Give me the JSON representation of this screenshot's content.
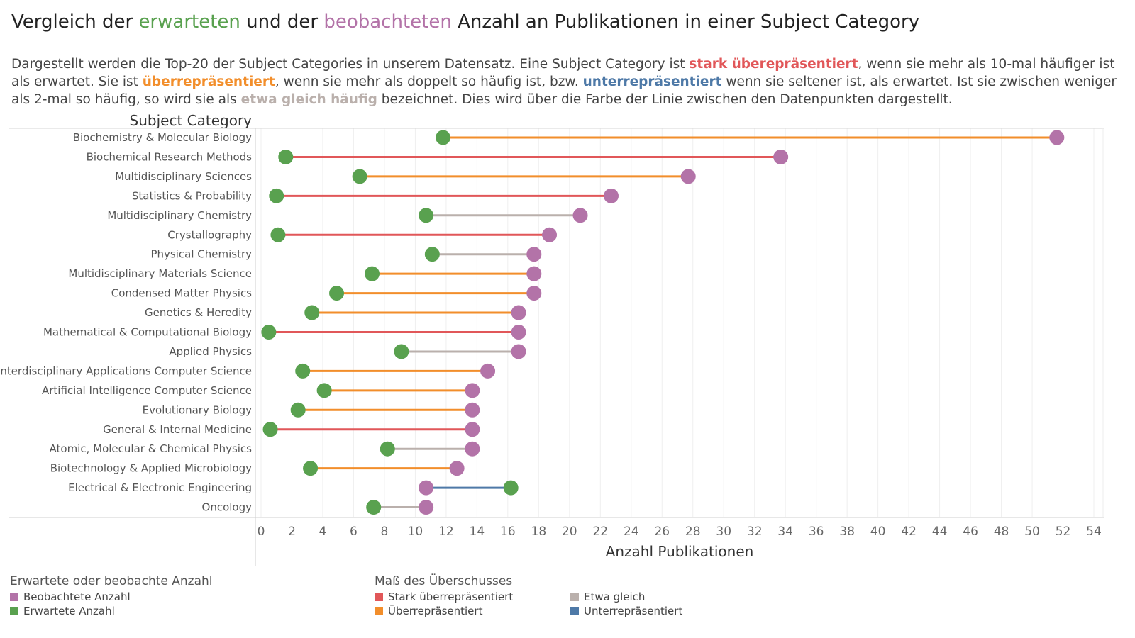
{
  "title": {
    "p1": "Vergleich der ",
    "erwartet": "erwarteten",
    "p2": " und der ",
    "beobachtet": "beobachteten",
    "p3": " Anzahl an Publikationen in einer Subject Category"
  },
  "description": {
    "s1": "Dargestellt werden die Top-20 der Subject Categories in unserem Datensatz. Eine Subject Category ist ",
    "strong_over": "stark überepräsentiert",
    "s2": ", wenn sie mehr als 10-mal häufiger ist als erwartet. Sie ist ",
    "over": "überrepräsentiert",
    "s3": ", wenn sie mehr als doppelt so häufig ist, bzw. ",
    "under": "unterrepräsentiert",
    "s4": " wenn sie seltener ist, als erwartet. Ist sie zwischen weniger als 2-mal so häufig, so wird sie als ",
    "equal": "etwa gleich häufig",
    "s5": " bezeichnet. Dies wird über die Farbe der Linie zwischen den Datenpunkten dargestellt."
  },
  "colors": {
    "observed": "#b373a8",
    "expected": "#59a14f",
    "strong_over": "#e15759",
    "over": "#f28e2b",
    "equal": "#bab0ac",
    "under": "#4e79a7"
  },
  "legend_points": {
    "title": "Erwartete oder beobachte Anzahl",
    "observed": "Beobachtete Anzahl",
    "expected": "Erwartete Anzahl"
  },
  "legend_lines": {
    "title": "Maß des Überschusses",
    "strong_over": "Stark überrepräsentiert",
    "over": "Überrepräsentiert",
    "equal": "Etwa gleich",
    "under": "Unterrepräsentiert"
  },
  "chart_data": {
    "type": "dumbbell",
    "y_header": "Subject Category",
    "xlabel": "Anzahl Publikationen",
    "xlim": [
      0,
      54
    ],
    "x_ticks": [
      0,
      2,
      4,
      6,
      8,
      10,
      12,
      14,
      16,
      18,
      20,
      22,
      24,
      26,
      28,
      30,
      32,
      34,
      36,
      38,
      40,
      42,
      44,
      46,
      48,
      50,
      52,
      54
    ],
    "grid": true,
    "series": [
      {
        "name": "Beobachtete Anzahl",
        "key": "observed"
      },
      {
        "name": "Erwartete Anzahl",
        "key": "expected"
      }
    ],
    "rows": [
      {
        "category": "Biochemistry & Molecular Biology",
        "observed": 51.6,
        "expected": 11.8,
        "level": "over"
      },
      {
        "category": "Biochemical Research Methods",
        "observed": 33.7,
        "expected": 1.6,
        "level": "strong_over"
      },
      {
        "category": "Multidisciplinary Sciences",
        "observed": 27.7,
        "expected": 6.4,
        "level": "over"
      },
      {
        "category": "Statistics & Probability",
        "observed": 22.7,
        "expected": 1.0,
        "level": "strong_over"
      },
      {
        "category": "Multidisciplinary Chemistry",
        "observed": 20.7,
        "expected": 10.7,
        "level": "equal"
      },
      {
        "category": "Crystallography",
        "observed": 18.7,
        "expected": 1.1,
        "level": "strong_over"
      },
      {
        "category": "Physical Chemistry",
        "observed": 17.7,
        "expected": 11.1,
        "level": "equal"
      },
      {
        "category": "Multidisciplinary Materials Science",
        "observed": 17.7,
        "expected": 7.2,
        "level": "over"
      },
      {
        "category": "Condensed Matter Physics",
        "observed": 17.7,
        "expected": 4.9,
        "level": "over"
      },
      {
        "category": "Genetics & Heredity",
        "observed": 16.7,
        "expected": 3.3,
        "level": "over"
      },
      {
        "category": "Mathematical & Computational Biology",
        "observed": 16.7,
        "expected": 0.5,
        "level": "strong_over"
      },
      {
        "category": "Applied Physics",
        "observed": 16.7,
        "expected": 9.1,
        "level": "equal"
      },
      {
        "category": "Interdisciplinary Applications Computer Science",
        "observed": 14.7,
        "expected": 2.7,
        "level": "over"
      },
      {
        "category": "Artificial Intelligence Computer Science",
        "observed": 13.7,
        "expected": 4.1,
        "level": "over"
      },
      {
        "category": "Evolutionary Biology",
        "observed": 13.7,
        "expected": 2.4,
        "level": "over"
      },
      {
        "category": "General & Internal Medicine",
        "observed": 13.7,
        "expected": 0.6,
        "level": "strong_over"
      },
      {
        "category": "Atomic, Molecular & Chemical Physics",
        "observed": 13.7,
        "expected": 8.2,
        "level": "equal"
      },
      {
        "category": "Biotechnology & Applied Microbiology",
        "observed": 12.7,
        "expected": 3.2,
        "level": "over"
      },
      {
        "category": "Electrical & Electronic Engineering",
        "observed": 10.7,
        "expected": 16.2,
        "level": "under"
      },
      {
        "category": "Oncology",
        "observed": 10.7,
        "expected": 7.3,
        "level": "equal"
      }
    ]
  }
}
